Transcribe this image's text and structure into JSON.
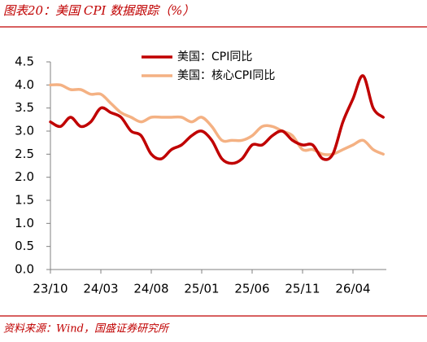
{
  "chart_data": {
    "type": "line",
    "title": "图表20：美国 CPI 数据跟踪（%）",
    "source": "资料来源：Wind，国盛证券研究所",
    "categories": [
      "23/10",
      null,
      null,
      null,
      null,
      "24/03",
      null,
      null,
      null,
      null,
      "24/08",
      null,
      null,
      null,
      null,
      "25/01",
      null,
      null,
      null,
      null,
      "25/06",
      null,
      null,
      null,
      null,
      "25/11",
      null,
      null,
      null,
      null,
      "26/04",
      null,
      null,
      null
    ],
    "series": [
      {
        "name": "美国：CPI同比",
        "color": "#c00000",
        "values": [
          3.2,
          3.1,
          3.3,
          3.1,
          3.2,
          3.5,
          3.4,
          3.3,
          3.0,
          2.9,
          2.5,
          2.4,
          2.6,
          2.7,
          2.9,
          3.0,
          2.8,
          2.4,
          2.3,
          2.4,
          2.7,
          2.7,
          2.9,
          3.0,
          2.8,
          2.7,
          2.7,
          2.4,
          2.5,
          3.2,
          3.7,
          4.2,
          3.5,
          3.3
        ]
      },
      {
        "name": "美国：核心CPI同比",
        "color": "#f4b183",
        "values": [
          4.0,
          4.0,
          3.9,
          3.9,
          3.8,
          3.8,
          3.6,
          3.4,
          3.3,
          3.2,
          3.3,
          3.3,
          3.3,
          3.3,
          3.2,
          3.3,
          3.1,
          2.8,
          2.8,
          2.8,
          2.9,
          3.1,
          3.1,
          3.0,
          2.9,
          2.6,
          2.6,
          2.5,
          2.5,
          2.6,
          2.7,
          2.8,
          2.6,
          2.5
        ]
      }
    ],
    "ylim": [
      0,
      4.5
    ],
    "yticks": [
      {
        "value": 0,
        "label": "0.0"
      },
      0.5,
      {
        "value": 1,
        "label": "1.0"
      },
      1.5,
      {
        "value": 2,
        "label": "2.0"
      },
      2.5,
      {
        "value": 3,
        "label": "3.0"
      },
      3.5,
      {
        "value": 4,
        "label": "4.0"
      },
      4.5
    ],
    "grid": false,
    "legend": "top"
  }
}
